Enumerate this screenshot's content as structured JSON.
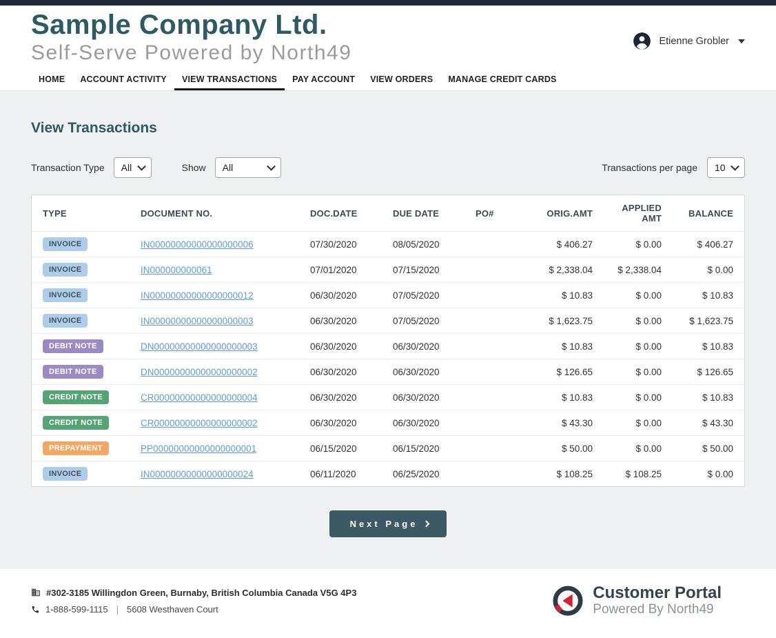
{
  "brand": {
    "company": "Sample Company Ltd.",
    "subtitle": "Self-Serve Powered by North49"
  },
  "user": {
    "name": "Etienne Grobler"
  },
  "nav": {
    "items": [
      {
        "label": "HOME",
        "active": false
      },
      {
        "label": "ACCOUNT ACTIVITY",
        "active": false
      },
      {
        "label": "VIEW TRANSACTIONS",
        "active": true
      },
      {
        "label": "PAY ACCOUNT",
        "active": false
      },
      {
        "label": "VIEW ORDERS",
        "active": false
      },
      {
        "label": "MANAGE CREDIT CARDS",
        "active": false
      }
    ]
  },
  "main": {
    "heading": "View Transactions",
    "filters": {
      "transaction_type_label": "Transaction Type",
      "transaction_type_value": "All",
      "show_label": "Show",
      "show_value": "All",
      "per_page_label": "Transactions per page",
      "per_page_value": "10"
    },
    "table": {
      "headers": [
        "TYPE",
        "DOCUMENT NO.",
        "DOC.DATE",
        "DUE DATE",
        "PO#",
        "ORIG.AMT",
        "APPLIED AMT",
        "BALANCE"
      ],
      "rows": [
        {
          "type": "INVOICE",
          "badge": "invoice",
          "doc_no": "IN00000000000000000006",
          "doc_date": "07/30/2020",
          "due_date": "08/05/2020",
          "po": "",
          "orig_amt": "$ 406.27",
          "applied_amt": "$ 0.00",
          "balance": "$ 406.27"
        },
        {
          "type": "INVOICE",
          "badge": "invoice",
          "doc_no": "IN000000000061",
          "doc_date": "07/01/2020",
          "due_date": "07/15/2020",
          "po": "",
          "orig_amt": "$ 2,338.04",
          "applied_amt": "$ 2,338.04",
          "balance": "$ 0.00"
        },
        {
          "type": "INVOICE",
          "badge": "invoice",
          "doc_no": "IN00000000000000000012",
          "doc_date": "06/30/2020",
          "due_date": "07/05/2020",
          "po": "",
          "orig_amt": "$ 10.83",
          "applied_amt": "$ 0.00",
          "balance": "$ 10.83"
        },
        {
          "type": "INVOICE",
          "badge": "invoice",
          "doc_no": "IN00000000000000000003",
          "doc_date": "06/30/2020",
          "due_date": "07/05/2020",
          "po": "",
          "orig_amt": "$ 1,623.75",
          "applied_amt": "$ 0.00",
          "balance": "$ 1,623.75"
        },
        {
          "type": "DEBIT NOTE",
          "badge": "debit_note",
          "doc_no": "DN00000000000000000003",
          "doc_date": "06/30/2020",
          "due_date": "06/30/2020",
          "po": "",
          "orig_amt": "$ 10.83",
          "applied_amt": "$ 0.00",
          "balance": "$ 10.83"
        },
        {
          "type": "DEBIT NOTE",
          "badge": "debit_note",
          "doc_no": "DN00000000000000000002",
          "doc_date": "06/30/2020",
          "due_date": "06/30/2020",
          "po": "",
          "orig_amt": "$ 126.65",
          "applied_amt": "$ 0.00",
          "balance": "$ 126.65"
        },
        {
          "type": "CREDIT NOTE",
          "badge": "credit_note",
          "doc_no": "CR00000000000000000004",
          "doc_date": "06/30/2020",
          "due_date": "06/30/2020",
          "po": "",
          "orig_amt": "$ 10.83",
          "applied_amt": "$ 0.00",
          "balance": "$ 10.83"
        },
        {
          "type": "CREDIT NOTE",
          "badge": "credit_note",
          "doc_no": "CR00000000000000000002",
          "doc_date": "06/30/2020",
          "due_date": "06/30/2020",
          "po": "",
          "orig_amt": "$ 43.30",
          "applied_amt": "$ 0.00",
          "balance": "$ 43.30"
        },
        {
          "type": "PREPAYMENT",
          "badge": "prepayment",
          "doc_no": "PP00000000000000000001",
          "doc_date": "06/15/2020",
          "due_date": "06/15/2020",
          "po": "",
          "orig_amt": "$ 50.00",
          "applied_amt": "$ 0.00",
          "balance": "$ 50.00"
        },
        {
          "type": "INVOICE",
          "badge": "invoice",
          "doc_no": "IN00000000000000000024",
          "doc_date": "06/11/2020",
          "due_date": "06/25/2020",
          "po": "",
          "orig_amt": "$ 108.25",
          "applied_amt": "$ 108.25",
          "balance": "$ 0.00"
        }
      ]
    },
    "pagination": {
      "next_label": "Next Page"
    }
  },
  "footer": {
    "address_line": "#302-3185 Willingdon Green, Burnaby, British Columbia Canada V5G 4P3",
    "phone": "1-888-599-1115",
    "divider": "|",
    "address2": "5608 Westhaven Court",
    "logo_title": "Customer Portal",
    "logo_subtitle": "Powered By North49"
  },
  "colors": {
    "accent_teal": "#2e5a64",
    "link_blue": "#5d9cdb",
    "button_bg": "#3c5a64",
    "topbar": "#1e2a33",
    "page_bg": "#eef0f1",
    "logo_red": "#d32330",
    "badges": {
      "invoice": {
        "bg": "#aecdea",
        "text": "#44505a"
      },
      "debit_note": {
        "bg": "#9c8ac5",
        "text": "#ffffff"
      },
      "credit_note": {
        "bg": "#55a476",
        "text": "#ffffff"
      },
      "prepayment": {
        "bg": "#f2a763",
        "text": "#ffffff"
      }
    }
  }
}
